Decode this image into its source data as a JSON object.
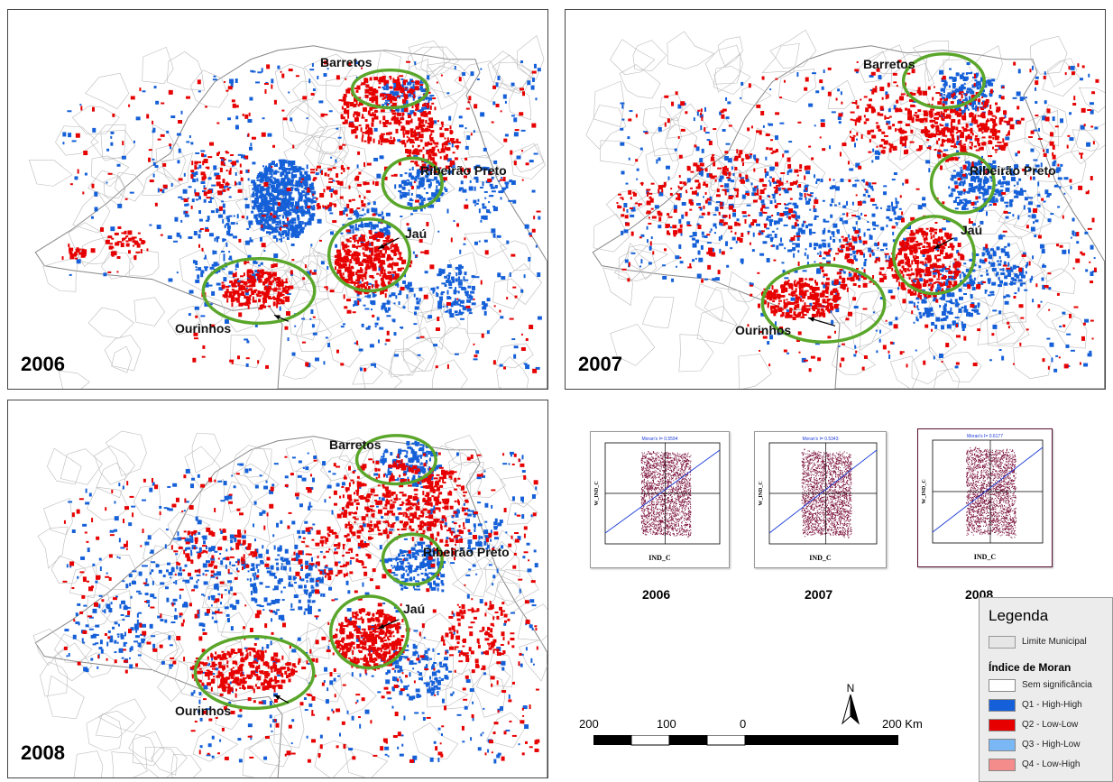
{
  "panels": [
    {
      "id": "p2006",
      "year": "2006",
      "labels": {
        "barretos": "Barretos",
        "ribeirao": "Ribeirão Preto",
        "jau": "Jaú",
        "ourinhos": "Ourinhos"
      }
    },
    {
      "id": "p2007",
      "year": "2007",
      "labels": {
        "barretos": "Barretos",
        "ribeirao": "Ribeirão Preto",
        "jau": "Jaú",
        "ourinhos": "Ourinhos"
      }
    },
    {
      "id": "p2008",
      "year": "2008",
      "labels": {
        "barretos": "Barretos",
        "ribeirao": "Ribeirão Preto",
        "jau": "Jaú",
        "ourinhos": "Ourinhos"
      }
    }
  ],
  "scatterplots": [
    {
      "year": "2006",
      "moran_text": "Moran's I= 0.5594",
      "xlabel": "IND_C",
      "ylabel": "W_IND_C"
    },
    {
      "year": "2007",
      "moran_text": "Moran's I= 0.5343",
      "xlabel": "IND_C",
      "ylabel": "W_IND_C"
    },
    {
      "year": "2008",
      "moran_text": "Moran's I= 0.6177",
      "xlabel": "IND_C",
      "ylabel": "W_IND_C"
    }
  ],
  "legend": {
    "title": "Legenda",
    "limite": "Limite Municipal",
    "subtitle": "Índice de Moran",
    "items": [
      {
        "label": "Sem significância",
        "color": "#ffffff"
      },
      {
        "label": "Q1 - High-High",
        "color": "#1560d8"
      },
      {
        "label": "Q2 - Low-Low",
        "color": "#e60000"
      },
      {
        "label": "Q3 - High-Low",
        "color": "#7ab8f5"
      },
      {
        "label": "Q4 - Low-High",
        "color": "#f58c8c"
      }
    ]
  },
  "scale": {
    "labels": [
      "200",
      "100",
      "0",
      "200 Km"
    ]
  },
  "north": "N",
  "colors": {
    "high_high": "#1560d8",
    "low_low": "#e60000",
    "circle": "#5aa62a",
    "scatter_points": "#7a0f3a"
  }
}
